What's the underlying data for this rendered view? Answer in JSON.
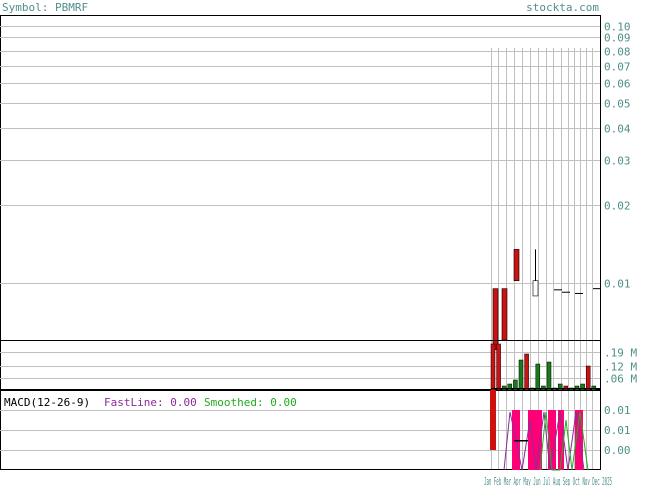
{
  "header": {
    "symbol_label": "Symbol: PBMRF",
    "site": "stockta.com"
  },
  "colors": {
    "text_teal": "#4f8f8a",
    "up": "#1a7a1a",
    "down": "#cc1111",
    "grid": "#c0c0c0",
    "fastline": "#8a2b9a",
    "smoothed": "#22aa22",
    "histogram": "#ff0077"
  },
  "price_axis_labels": [
    "0.10",
    "0.09",
    "0.08",
    "0.07",
    "0.06",
    "0.05",
    "0.04",
    "0.03",
    "0.02",
    "0.01"
  ],
  "volume_axis_labels": [
    ".19 M",
    ".12 M",
    ".06 M"
  ],
  "macd_axis_labels": [
    "0.01",
    "0.01",
    "0.00"
  ],
  "x_axis_text": "Jan Feb Mar Apr May Jun Jul Aug Sep Oct Nov Dec 2025",
  "macd_legend": {
    "name": "MACD(12-26-9)",
    "fast": "FastLine: 0.00",
    "smooth": "Smoothed: 0.00"
  },
  "chart_data": {
    "type": "candlestick",
    "symbol": "PBMRF",
    "price_scale": "log",
    "price_range": [
      0.006,
      0.11
    ],
    "candles": [
      {
        "open": 0.0095,
        "high": 0.0095,
        "low": 0.0055,
        "close": 0.0055,
        "dir": "down"
      },
      {
        "open": 0.0095,
        "high": 0.0095,
        "low": 0.006,
        "close": 0.006,
        "dir": "down"
      },
      {
        "open": 0.0135,
        "high": 0.0135,
        "low": 0.0102,
        "close": 0.0102,
        "dir": "down"
      },
      {
        "open": 0.0089,
        "high": 0.0135,
        "low": 0.0089,
        "close": 0.0102,
        "dir": "up"
      },
      {
        "open": 0.0094,
        "high": 0.0094,
        "low": 0.0094,
        "close": 0.0094,
        "dir": "flat"
      },
      {
        "open": 0.0092,
        "high": 0.0092,
        "low": 0.0092,
        "close": 0.0092,
        "dir": "flat"
      },
      {
        "open": 0.0091,
        "high": 0.0091,
        "low": 0.0091,
        "close": 0.0091,
        "dir": "flat"
      },
      {
        "open": 0.0095,
        "high": 0.0095,
        "low": 0.0095,
        "close": 0.0095,
        "dir": "flat"
      }
    ],
    "volume": [
      {
        "value": 0.23,
        "dir": "down"
      },
      {
        "value": 0.23,
        "dir": "down"
      },
      {
        "value": 0.02,
        "dir": "up"
      },
      {
        "value": 0.03,
        "dir": "up"
      },
      {
        "value": 0.05,
        "dir": "up"
      },
      {
        "value": 0.15,
        "dir": "up"
      },
      {
        "value": 0.18,
        "dir": "down"
      },
      {
        "value": 0.01,
        "dir": "up"
      },
      {
        "value": 0.13,
        "dir": "up"
      },
      {
        "value": 0.02,
        "dir": "up"
      },
      {
        "value": 0.14,
        "dir": "up"
      },
      {
        "value": 0.01,
        "dir": "up"
      },
      {
        "value": 0.03,
        "dir": "up"
      },
      {
        "value": 0.02,
        "dir": "down"
      },
      {
        "value": 0.01,
        "dir": "up"
      },
      {
        "value": 0.02,
        "dir": "up"
      },
      {
        "value": 0.03,
        "dir": "up"
      },
      {
        "value": 0.12,
        "dir": "down"
      },
      {
        "value": 0.02,
        "dir": "up"
      }
    ],
    "macd": {
      "fast": 0.0,
      "smoothed": 0.0
    }
  }
}
